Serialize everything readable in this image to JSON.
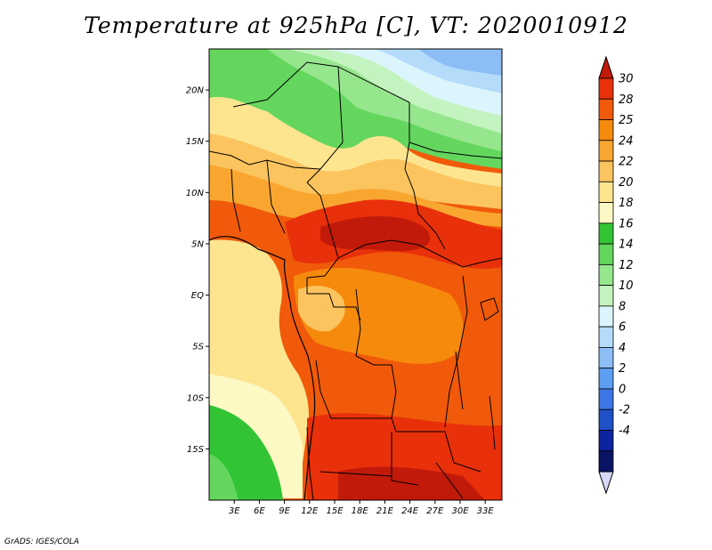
{
  "title": "Temperature at 925hPa [C], VT: 2020010912",
  "credit": "GrADS: IGES/COLA",
  "map": {
    "lon_range": [
      0,
      35
    ],
    "lat_range": [
      -20,
      24
    ],
    "x_ticks": [
      "3E",
      "6E",
      "9E",
      "12E",
      "15E",
      "18E",
      "21E",
      "24E",
      "27E",
      "30E",
      "33E"
    ],
    "y_ticks": [
      "20N",
      "15N",
      "10N",
      "5N",
      "EQ",
      "5S",
      "10S",
      "15S"
    ]
  },
  "colorbar": {
    "labels": [
      "30",
      "28",
      "25",
      "24",
      "22",
      "20",
      "18",
      "16",
      "14",
      "12",
      "10",
      "8",
      "6",
      "4",
      "2",
      "0",
      "-2",
      "-4"
    ],
    "colors": [
      "#e8300b",
      "#f05a0a",
      "#f68a0c",
      "#f8a630",
      "#fbc45e",
      "#fde590",
      "#fdf9c4",
      "#33c435",
      "#64d65e",
      "#96e68e",
      "#c3f4bf",
      "#dcf4fc",
      "#b4dcfa",
      "#8cbef5",
      "#5c9ef0",
      "#3c76e6",
      "#1e50c8",
      "#0c24a0",
      "#0a1464"
    ],
    "top_color": "#c21a0a",
    "bottom_color": "#d8d8f6"
  }
}
